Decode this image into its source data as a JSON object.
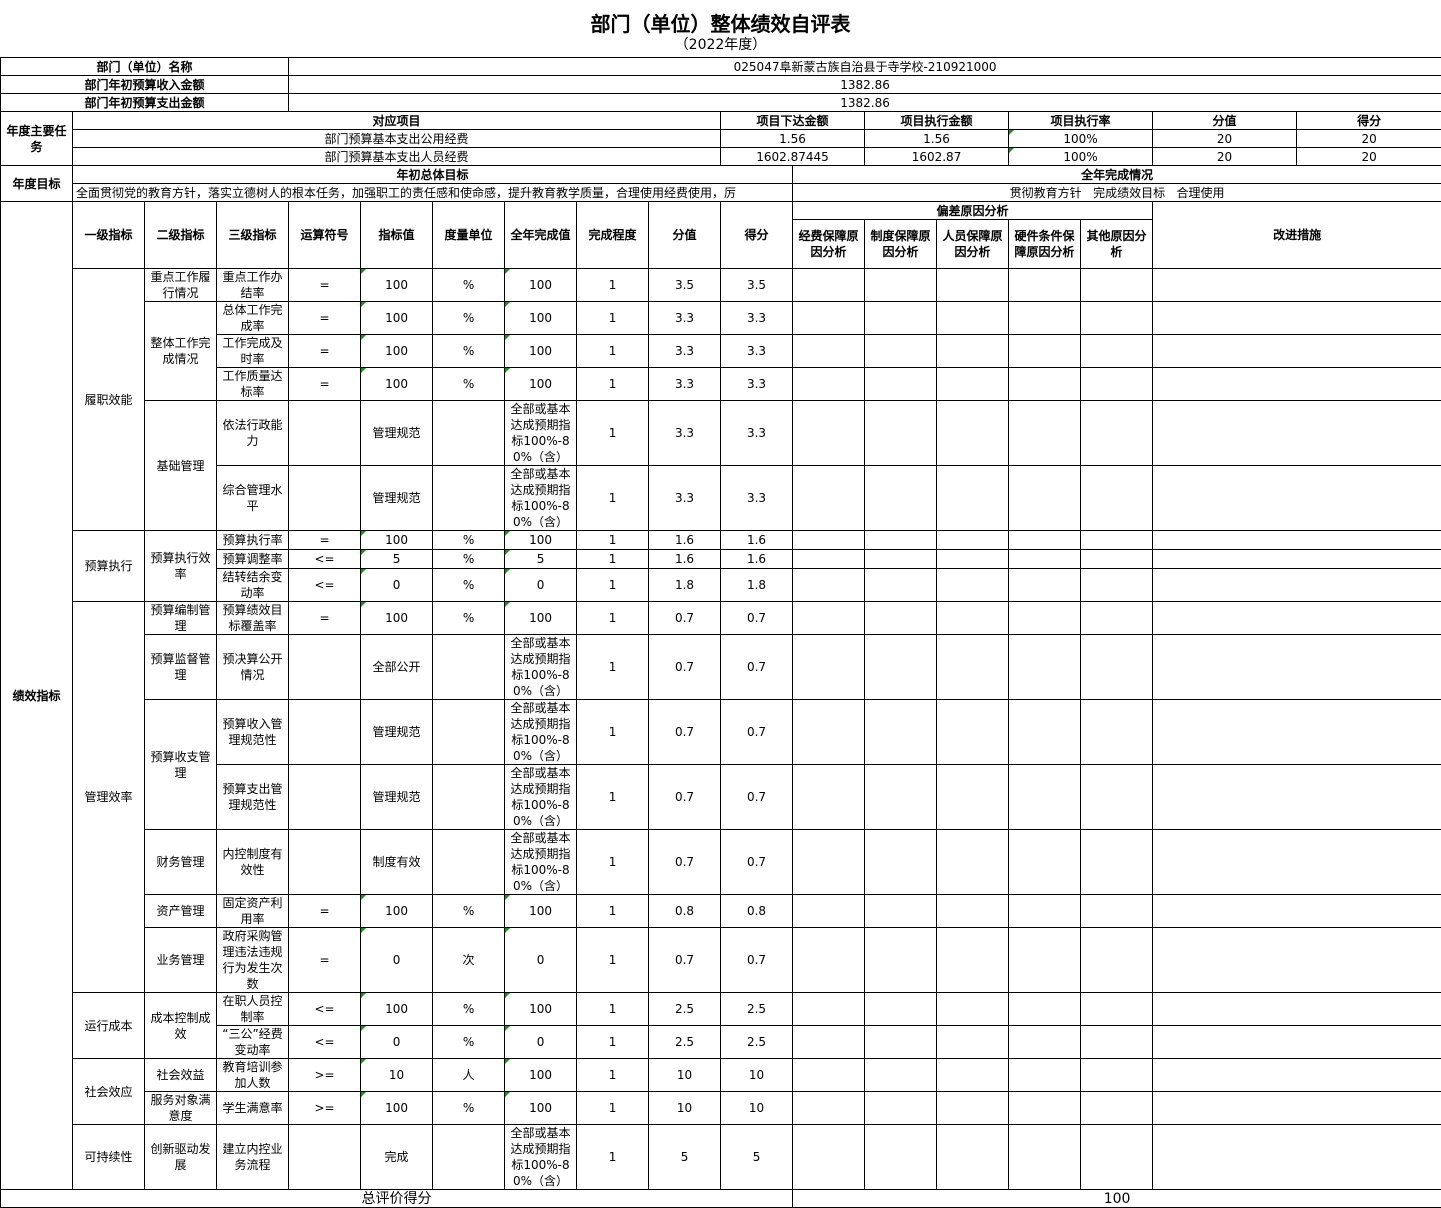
{
  "title": "部门（单位）整体绩效自评表",
  "subtitle": "（2022年度）",
  "header": {
    "dept_name_label": "部门（单位）名称",
    "dept_name_value": "025047阜新蒙古族自治县于寺学校-210921000",
    "income_label": "部门年初预算收入金额",
    "income_value": "1382.86",
    "expense_label": "部门年初预算支出金额",
    "expense_value": "1382.86"
  },
  "tasks": {
    "label": "年度主要任务",
    "columns": [
      "对应项目",
      "项目下达金额",
      "项目执行金额",
      "项目执行率",
      "分值",
      "得分"
    ],
    "rows": [
      {
        "item": "部门预算基本支出公用经费",
        "allocated": "1.56",
        "executed": "1.56",
        "rate": "100%",
        "weight": "20",
        "score": "20"
      },
      {
        "item": "部门预算基本支出人员经费",
        "allocated": "1602.87445",
        "executed": "1602.87",
        "rate": "100%",
        "weight": "20",
        "score": "20"
      }
    ]
  },
  "goals": {
    "label": "年度目标",
    "initial_label": "年初总体目标",
    "initial_text": "全面贯彻党的教育方针，落实立德树人的根本任务，加强职工的责任感和使命感，提升教育教学质量，合理使用经费使用，厉",
    "completion_label": "全年完成情况",
    "completion_text": "贯彻教育方针   完成绩效目标   合理使用"
  },
  "indicators": {
    "label": "绩效指标",
    "columns": [
      "一级指标",
      "二级指标",
      "三级指标",
      "运算符号",
      "指标值",
      "度量单位",
      "全年完成值",
      "完成程度",
      "分值",
      "得分"
    ],
    "deviation_label": "偏差原因分析",
    "deviation_columns": [
      "经费保障原因分析",
      "制度保障原因分析",
      "人员保障原因分析",
      "硬件条件保障原因分析",
      "其他原因分析"
    ],
    "improve_label": "改进措施",
    "groups": [
      {
        "level1": "履职效能",
        "subs": [
          {
            "level2": "重点工作履行情况",
            "items": [
              {
                "level3": "重点工作办结率",
                "op": "=",
                "target": "100",
                "unit": "%",
                "actual": "100",
                "degree": "1",
                "weight": "3.5",
                "score": "3.5"
              }
            ]
          },
          {
            "level2": "整体工作完成情况",
            "items": [
              {
                "level3": "总体工作完成率",
                "op": "=",
                "target": "100",
                "unit": "%",
                "actual": "100",
                "degree": "1",
                "weight": "3.3",
                "score": "3.3"
              },
              {
                "level3": "工作完成及时率",
                "op": "=",
                "target": "100",
                "unit": "%",
                "actual": "100",
                "degree": "1",
                "weight": "3.3",
                "score": "3.3"
              },
              {
                "level3": "工作质量达标率",
                "op": "=",
                "target": "100",
                "unit": "%",
                "actual": "100",
                "degree": "1",
                "weight": "3.3",
                "score": "3.3"
              }
            ]
          },
          {
            "level2": "基础管理",
            "items": [
              {
                "level3": "依法行政能力",
                "op": "",
                "target": "管理规范",
                "unit": "",
                "actual": "全部或基本达成预期指标100%-80%（含）",
                "degree": "1",
                "weight": "3.3",
                "score": "3.3"
              },
              {
                "level3": "综合管理水平",
                "op": "",
                "target": "管理规范",
                "unit": "",
                "actual": "全部或基本达成预期指标100%-80%（含）",
                "degree": "1",
                "weight": "3.3",
                "score": "3.3"
              }
            ]
          }
        ]
      },
      {
        "level1": "预算执行",
        "subs": [
          {
            "level2": "预算执行效率",
            "items": [
              {
                "level3": "预算执行率",
                "op": "=",
                "target": "100",
                "unit": "%",
                "actual": "100",
                "degree": "1",
                "weight": "1.6",
                "score": "1.6"
              },
              {
                "level3": "预算调整率",
                "op": "<=",
                "target": "5",
                "unit": "%",
                "actual": "5",
                "degree": "1",
                "weight": "1.6",
                "score": "1.6"
              },
              {
                "level3": "结转结余变动率",
                "op": "<=",
                "target": "0",
                "unit": "%",
                "actual": "0",
                "degree": "1",
                "weight": "1.8",
                "score": "1.8"
              }
            ]
          }
        ]
      },
      {
        "level1": "管理效率",
        "subs": [
          {
            "level2": "预算编制管理",
            "items": [
              {
                "level3": "预算绩效目标覆盖率",
                "op": "=",
                "target": "100",
                "unit": "%",
                "actual": "100",
                "degree": "1",
                "weight": "0.7",
                "score": "0.7"
              }
            ]
          },
          {
            "level2": "预算监督管理",
            "items": [
              {
                "level3": "预决算公开情况",
                "op": "",
                "target": "全部公开",
                "unit": "",
                "actual": "全部或基本达成预期指标100%-80%（含）",
                "degree": "1",
                "weight": "0.7",
                "score": "0.7"
              }
            ]
          },
          {
            "level2": "预算收支管理",
            "items": [
              {
                "level3": "预算收入管理规范性",
                "op": "",
                "target": "管理规范",
                "unit": "",
                "actual": "全部或基本达成预期指标100%-80%（含）",
                "degree": "1",
                "weight": "0.7",
                "score": "0.7"
              },
              {
                "level3": "预算支出管理规范性",
                "op": "",
                "target": "管理规范",
                "unit": "",
                "actual": "全部或基本达成预期指标100%-80%（含）",
                "degree": "1",
                "weight": "0.7",
                "score": "0.7"
              }
            ]
          },
          {
            "level2": "财务管理",
            "items": [
              {
                "level3": "内控制度有效性",
                "op": "",
                "target": "制度有效",
                "unit": "",
                "actual": "全部或基本达成预期指标100%-80%（含）",
                "degree": "1",
                "weight": "0.7",
                "score": "0.7"
              }
            ]
          },
          {
            "level2": "资产管理",
            "items": [
              {
                "level3": "固定资产利用率",
                "op": "=",
                "target": "100",
                "unit": "%",
                "actual": "100",
                "degree": "1",
                "weight": "0.8",
                "score": "0.8"
              }
            ]
          },
          {
            "level2": "业务管理",
            "items": [
              {
                "level3": "政府采购管理违法违规行为发生次数",
                "op": "=",
                "target": "0",
                "unit": "次",
                "actual": "0",
                "degree": "1",
                "weight": "0.7",
                "score": "0.7"
              }
            ]
          }
        ]
      },
      {
        "level1": "运行成本",
        "subs": [
          {
            "level2": "成本控制成效",
            "items": [
              {
                "level3": "在职人员控制率",
                "op": "<=",
                "target": "100",
                "unit": "%",
                "actual": "100",
                "degree": "1",
                "weight": "2.5",
                "score": "2.5"
              },
              {
                "level3": "“三公”经费变动率",
                "op": "<=",
                "target": "0",
                "unit": "%",
                "actual": "0",
                "degree": "1",
                "weight": "2.5",
                "score": "2.5"
              }
            ]
          }
        ]
      },
      {
        "level1": "社会效应",
        "subs": [
          {
            "level2": "社会效益",
            "items": [
              {
                "level3": "教育培训参加人数",
                "op": ">=",
                "target": "10",
                "unit": "人",
                "actual": "100",
                "degree": "1",
                "weight": "10",
                "score": "10"
              }
            ]
          },
          {
            "level2": "服务对象满意度",
            "items": [
              {
                "level3": "学生满意率",
                "op": ">=",
                "target": "100",
                "unit": "%",
                "actual": "100",
                "degree": "1",
                "weight": "10",
                "score": "10"
              }
            ]
          }
        ]
      },
      {
        "level1": "可持续性",
        "subs": [
          {
            "level2": "创新驱动发展",
            "items": [
              {
                "level3": "建立内控业务流程",
                "op": "",
                "target": "完成",
                "unit": "",
                "actual": "全部或基本达成预期指标100%-80%（含）",
                "degree": "1",
                "weight": "5",
                "score": "5"
              }
            ]
          }
        ]
      }
    ]
  },
  "total": {
    "label": "总评价得分",
    "value": "100"
  },
  "colors": {
    "border": "#000000",
    "marker": "#1a8f1a"
  }
}
